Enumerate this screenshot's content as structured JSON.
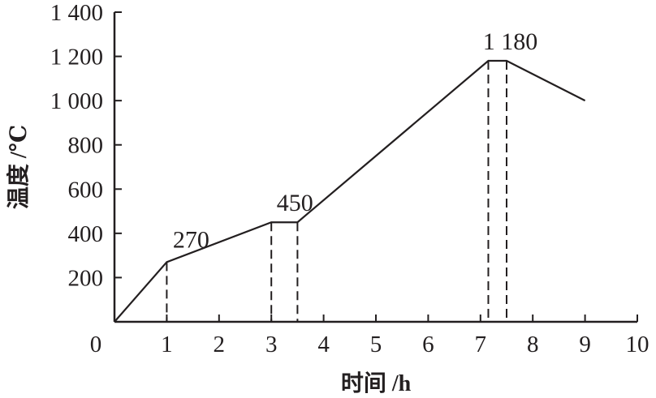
{
  "chart_data": {
    "type": "line",
    "title": "",
    "xlabel": "时间 /h",
    "ylabel": "温度 /℃",
    "xlim": [
      0,
      10
    ],
    "ylim": [
      0,
      1400
    ],
    "xticks": [
      0,
      1,
      2,
      3,
      4,
      5,
      6,
      7,
      8,
      9,
      10
    ],
    "xtick_labels": [
      "0",
      "1",
      "2",
      "3",
      "4",
      "5",
      "6",
      "7",
      "8",
      "9",
      "10"
    ],
    "yticks": [
      200,
      400,
      600,
      800,
      1000,
      1200,
      1400
    ],
    "ytick_labels": [
      "200",
      "400",
      "600",
      "800",
      "1 000",
      "1 200",
      "1 400"
    ],
    "grid": false,
    "series": [
      {
        "x": [
          0,
          1,
          3,
          3.5,
          7.15,
          7.5,
          9
        ],
        "y": [
          0,
          270,
          450,
          450,
          1180,
          1180,
          1000
        ]
      }
    ],
    "dashed_verticals": [
      {
        "x": 1,
        "y": 270
      },
      {
        "x": 3,
        "y": 450
      },
      {
        "x": 3.5,
        "y": 450
      },
      {
        "x": 7.15,
        "y": 1180
      },
      {
        "x": 7.5,
        "y": 1180
      }
    ],
    "annotations": [
      {
        "text": "270",
        "x": 1,
        "y": 270
      },
      {
        "text": "450",
        "x": 3,
        "y": 450
      },
      {
        "text": "1 180",
        "x": 7.15,
        "y": 1180
      }
    ],
    "line_color": "#231f20"
  }
}
